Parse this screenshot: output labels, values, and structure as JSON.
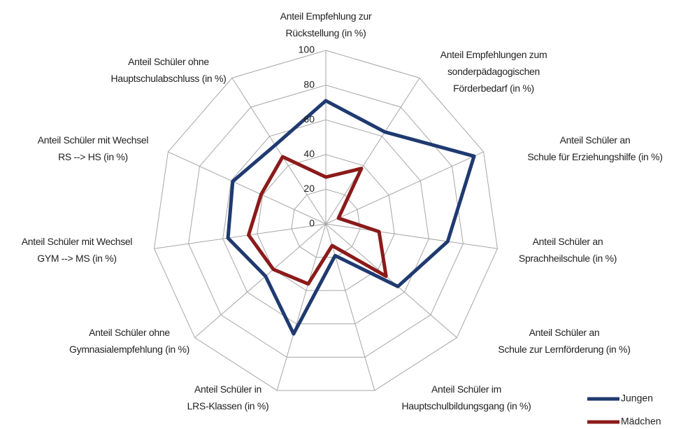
{
  "chart_data": {
    "type": "radar",
    "categories": [
      "Anteil Empfehlung zur\nRückstellung (in %)",
      "Anteil Empfehlungen zum\nsonderpädagogischen\nFörderbedarf (in %)",
      "Anteil Schüler an\nSchule für Erziehungshilfe (in %)",
      "Anteil Schüler an\nSprachheilschule (in %)",
      "Anteil Schüler an\nSchule zur Lernförderung (in %)",
      "Anteil Schüler im\nHauptschulbildungsgang (in %)",
      "Anteil Schüler in\nLRS-Klassen (in %)",
      "Anteil Schüler ohne\nGymnasialempfehlung (in %)",
      "Anteil Schüler mit Wechsel\nGYM --> MS (in %)",
      "Anteil Schüler mit Wechsel\nRS --> HS (in %)",
      "Anteil Schüler ohne\nHauptschulabschluss (in %)"
    ],
    "series": [
      {
        "name": "Jungen",
        "color": "#1f3a70",
        "values": [
          71,
          63,
          94,
          71,
          55,
          19,
          66,
          46,
          57,
          59,
          54
        ]
      },
      {
        "name": "Mädchen",
        "color": "#8b1a1a",
        "values": [
          27,
          38,
          8,
          31,
          46,
          13,
          36,
          40,
          45,
          41,
          46
        ]
      }
    ],
    "ylim": [
      0,
      100
    ],
    "yticks": [
      0,
      20,
      40,
      60,
      80,
      100
    ],
    "grid": true,
    "legend": "lower right"
  }
}
